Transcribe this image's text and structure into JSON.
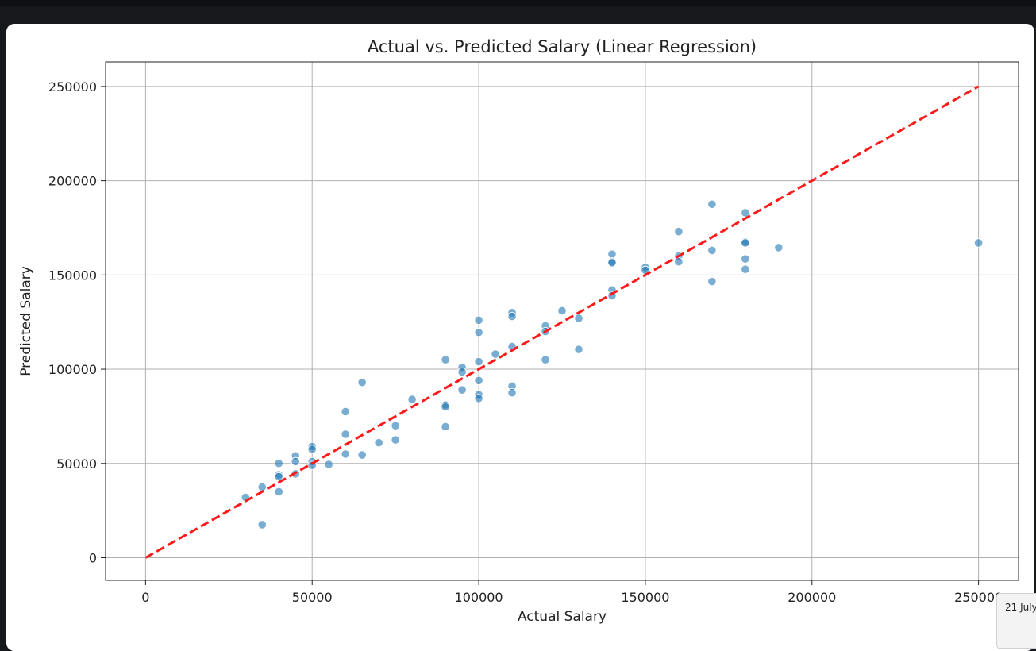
{
  "chart_data": {
    "type": "scatter",
    "title": "Actual vs. Predicted Salary (Linear Regression)",
    "xlabel": "Actual Salary",
    "ylabel": "Predicted Salary",
    "xlim": [
      -12000,
      262000
    ],
    "ylim": [
      -12000,
      263000
    ],
    "xticks": [
      0,
      50000,
      100000,
      150000,
      200000,
      250000
    ],
    "xtick_labels": [
      "0",
      "50000",
      "100000",
      "150000",
      "200000",
      "250000"
    ],
    "yticks": [
      0,
      50000,
      100000,
      150000,
      200000,
      250000
    ],
    "ytick_labels": [
      "0",
      "50000",
      "100000",
      "150000",
      "200000",
      "250000"
    ],
    "grid": true,
    "point_color": "#1f77b4",
    "reference_line": {
      "x": [
        0,
        250000
      ],
      "y": [
        0,
        250000
      ],
      "color": "#ff1a1a",
      "style": "dashed"
    },
    "points": [
      [
        30000,
        32000
      ],
      [
        35000,
        37500
      ],
      [
        35000,
        17500
      ],
      [
        40000,
        50000
      ],
      [
        40000,
        44000
      ],
      [
        40000,
        43000
      ],
      [
        40000,
        35000
      ],
      [
        45000,
        54000
      ],
      [
        45000,
        51000
      ],
      [
        45000,
        44500
      ],
      [
        50000,
        59000
      ],
      [
        50000,
        57500
      ],
      [
        50000,
        51000
      ],
      [
        50000,
        49000
      ],
      [
        55000,
        49500
      ],
      [
        60000,
        77500
      ],
      [
        60000,
        65500
      ],
      [
        60000,
        55000
      ],
      [
        65000,
        93000
      ],
      [
        65000,
        54500
      ],
      [
        70000,
        61000
      ],
      [
        75000,
        70000
      ],
      [
        75000,
        62500
      ],
      [
        80000,
        84000
      ],
      [
        90000,
        105000
      ],
      [
        90000,
        81000
      ],
      [
        90000,
        80000
      ],
      [
        90000,
        69500
      ],
      [
        95000,
        101000
      ],
      [
        95000,
        98500
      ],
      [
        95000,
        89000
      ],
      [
        100000,
        126000
      ],
      [
        100000,
        119500
      ],
      [
        100000,
        104000
      ],
      [
        100000,
        94000
      ],
      [
        100000,
        86500
      ],
      [
        100000,
        84500
      ],
      [
        105000,
        108000
      ],
      [
        110000,
        130000
      ],
      [
        110000,
        128000
      ],
      [
        110000,
        112000
      ],
      [
        110000,
        91000
      ],
      [
        110000,
        87500
      ],
      [
        120000,
        123000
      ],
      [
        120000,
        120000
      ],
      [
        120000,
        105000
      ],
      [
        125000,
        131000
      ],
      [
        130000,
        127000
      ],
      [
        130000,
        110500
      ],
      [
        140000,
        161000
      ],
      [
        140000,
        157000
      ],
      [
        140000,
        156500
      ],
      [
        140000,
        142000
      ],
      [
        140000,
        139000
      ],
      [
        150000,
        154000
      ],
      [
        150000,
        152500
      ],
      [
        160000,
        173000
      ],
      [
        160000,
        160000
      ],
      [
        160000,
        157000
      ],
      [
        170000,
        187500
      ],
      [
        170000,
        163000
      ],
      [
        170000,
        146500
      ],
      [
        180000,
        183000
      ],
      [
        180000,
        167500
      ],
      [
        180000,
        167000
      ],
      [
        180000,
        158500
      ],
      [
        180000,
        153000
      ],
      [
        190000,
        164500
      ],
      [
        250000,
        167000
      ]
    ]
  },
  "tooltip": {
    "text": "21 July"
  }
}
